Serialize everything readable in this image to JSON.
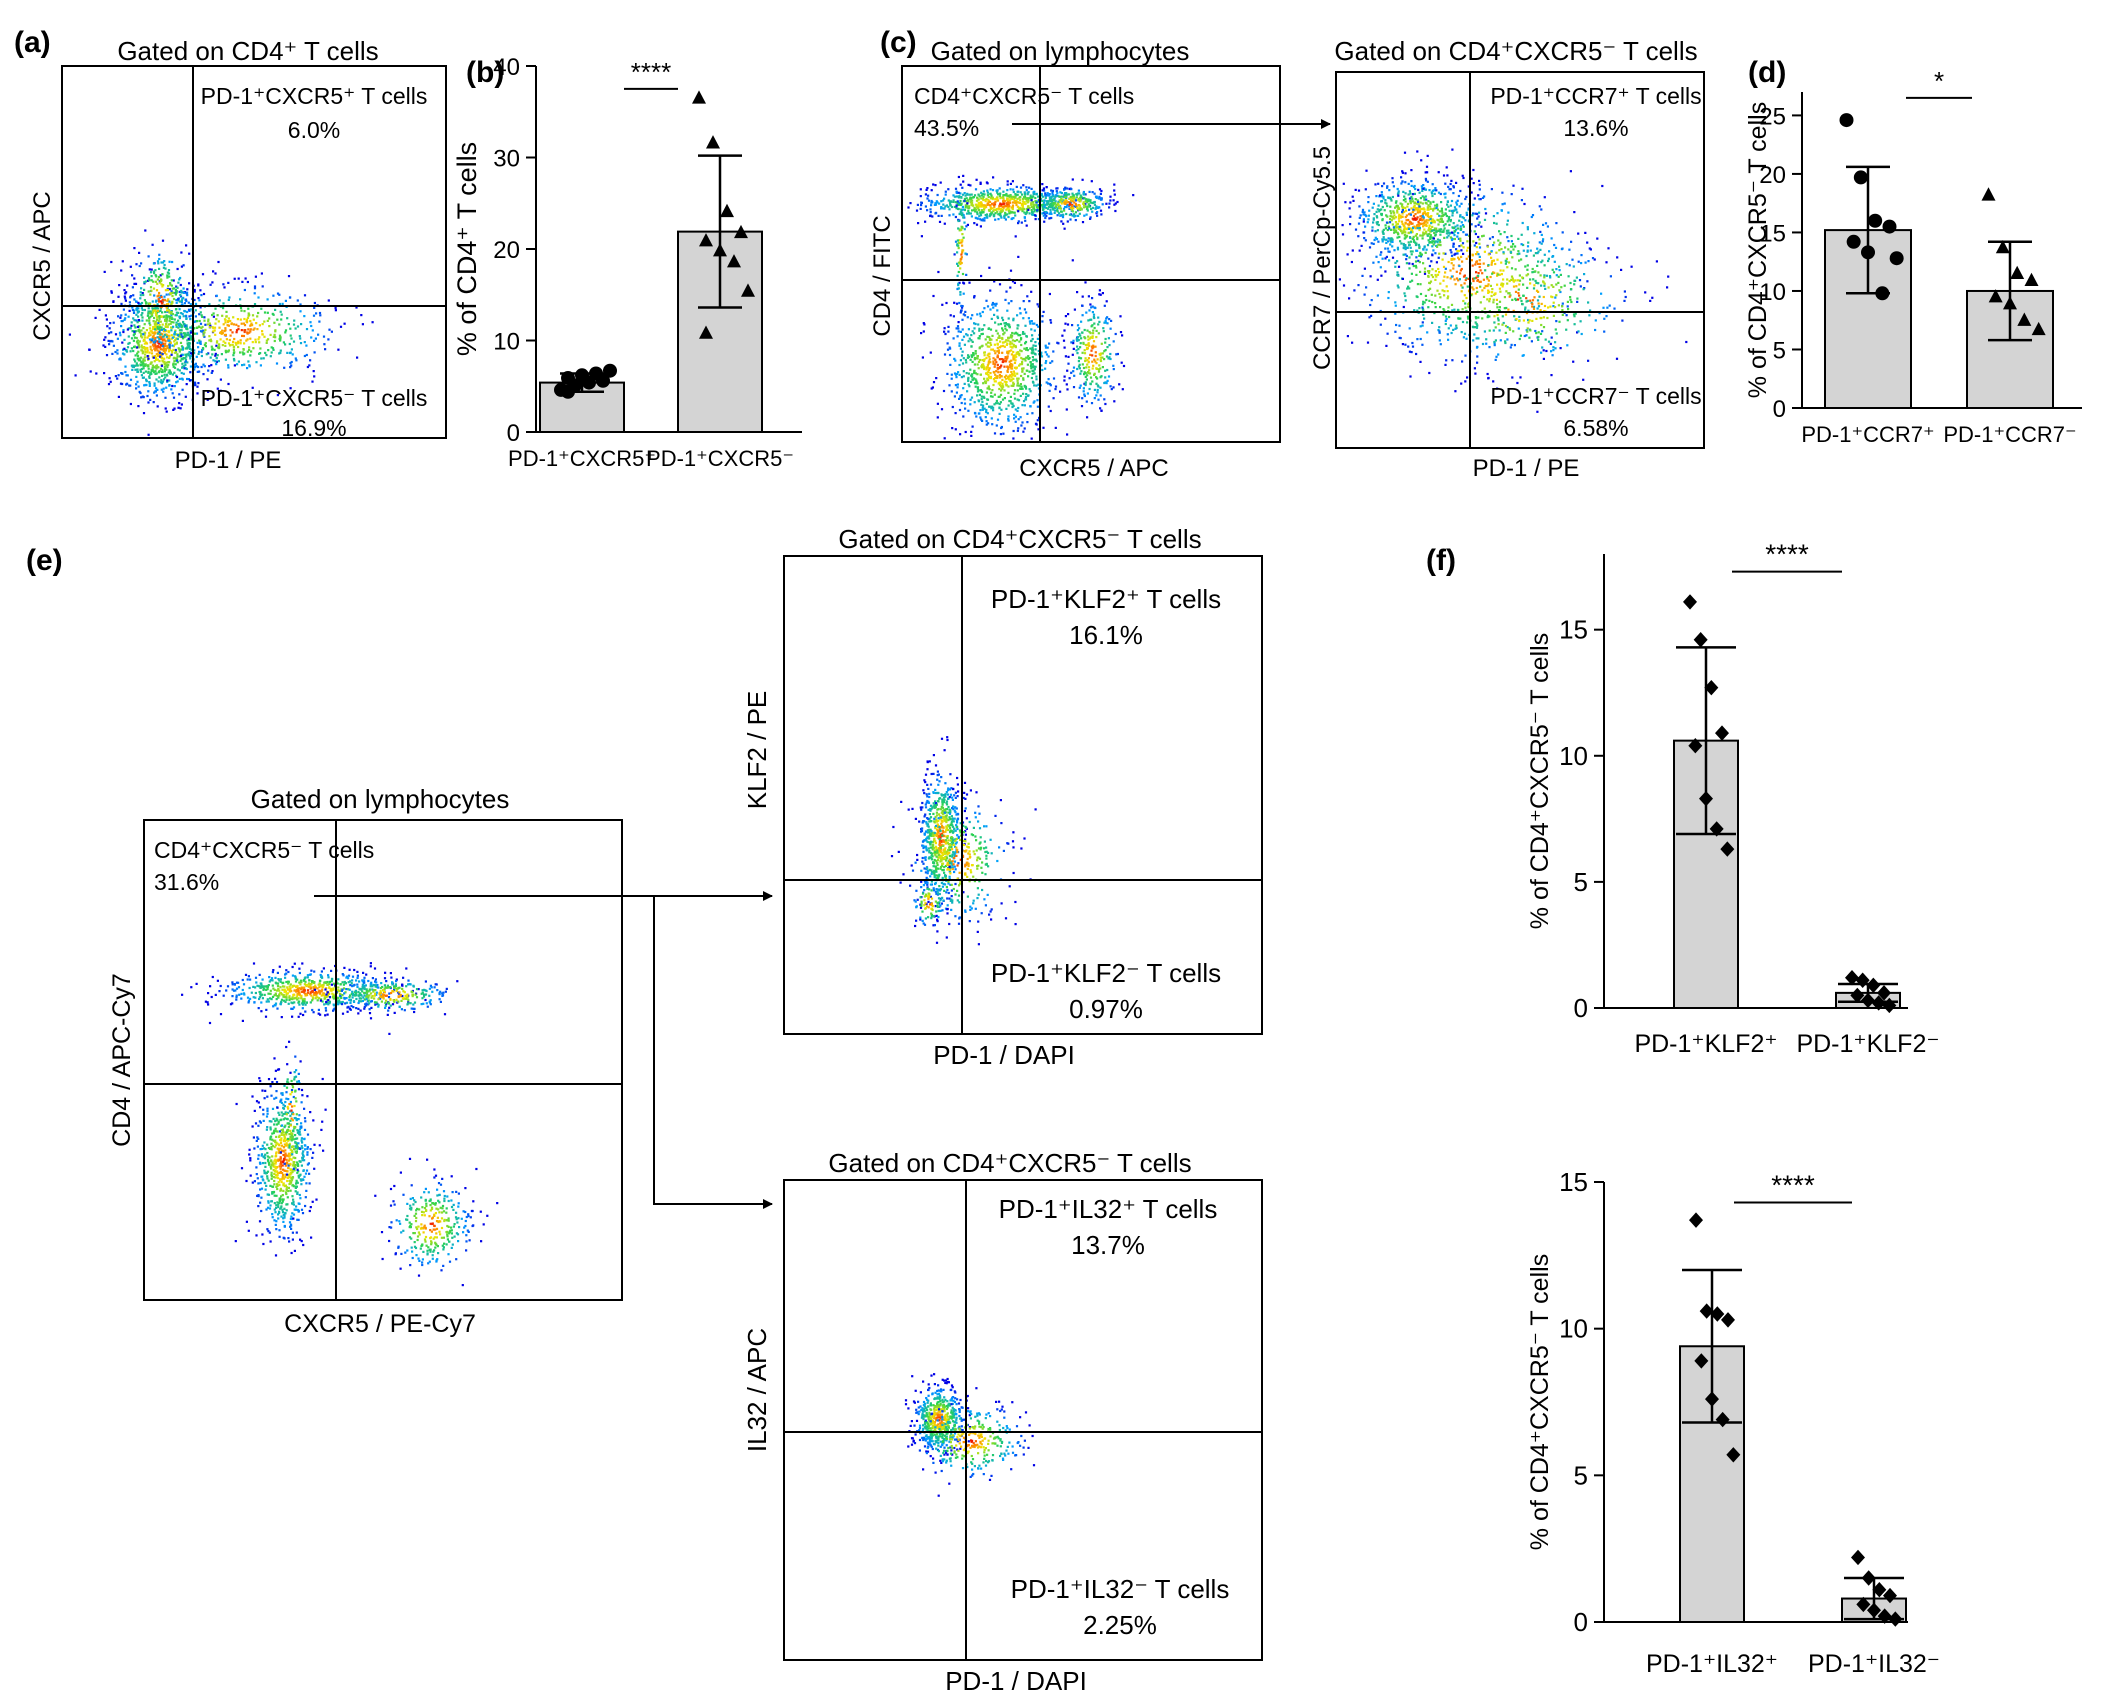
{
  "panel_labels": [
    "(a)",
    "(b)",
    "(c)",
    "(d)",
    "(e)",
    "(f)"
  ],
  "flow_plots": [
    {
      "id": "a",
      "gate": "Gated on CD4⁺ T cells",
      "xlabel": "PD-1 / PE",
      "ylabel": "CXCR5 / APC",
      "quadrants": [
        {
          "name": "PD-1⁺CXCR5⁺ T cells",
          "pct": "6.0%"
        },
        {
          "name": "PD-1⁺CXCR5⁻ T cells",
          "pct": "16.9%"
        }
      ]
    },
    {
      "id": "c1",
      "gate": "Gated on lymphocytes",
      "xlabel": "CXCR5 / APC",
      "ylabel": "CD4 / FITC",
      "quadrants": [
        {
          "name": "CD4⁺CXCR5⁻ T cells",
          "pct": "43.5%"
        }
      ]
    },
    {
      "id": "c2",
      "gate": "Gated on CD4⁺CXCR5⁻ T cells",
      "xlabel": "PD-1 / PE",
      "ylabel": "CCR7 / PerCp-Cy5.5",
      "quadrants": [
        {
          "name": "PD-1⁺CCR7⁺ T cells",
          "pct": "13.6%"
        },
        {
          "name": "PD-1⁺CCR7⁻ T cells",
          "pct": "6.58%"
        }
      ]
    },
    {
      "id": "e1",
      "gate": "Gated on lymphocytes",
      "xlabel": "CXCR5 / PE-Cy7",
      "ylabel": "CD4 / APC-Cy7",
      "quadrants": [
        {
          "name": "CD4⁺CXCR5⁻ T cells",
          "pct": "31.6%"
        }
      ]
    },
    {
      "id": "e2",
      "gate": "Gated on CD4⁺CXCR5⁻ T cells",
      "xlabel": "PD-1 / DAPI",
      "ylabel": "KLF2 / PE",
      "quadrants": [
        {
          "name": "PD-1⁺KLF2⁺ T cells",
          "pct": "16.1%"
        },
        {
          "name": "PD-1⁺KLF2⁻ T cells",
          "pct": "0.97%"
        }
      ]
    },
    {
      "id": "e3",
      "gate": "Gated on CD4⁺CXCR5⁻ T cells",
      "xlabel": "PD-1 / DAPI",
      "ylabel": "IL32 / APC",
      "quadrants": [
        {
          "name": "PD-1⁺IL32⁺ T cells",
          "pct": "13.7%"
        },
        {
          "name": "PD-1⁺IL32⁻ T cells",
          "pct": "2.25%"
        }
      ]
    }
  ],
  "chart_data": [
    {
      "id": "b",
      "type": "bar",
      "ylabel": "% of CD4⁺ T cells",
      "ylim": [
        0,
        40
      ],
      "yticks": [
        0,
        10,
        20,
        30,
        40
      ],
      "categories": [
        "PD-1⁺CXCR5⁺",
        "PD-1⁺CXCR5⁻"
      ],
      "values": [
        5.4,
        21.9
      ],
      "errors": [
        1.0,
        8.3
      ],
      "points": [
        [
          4.6,
          5.1,
          5.4,
          5.6,
          5.9,
          6.2,
          6.4,
          6.7,
          4.4
        ],
        [
          36.5,
          31.6,
          24.1,
          21.8,
          20.9,
          19.8,
          18.6,
          15.4,
          10.8
        ]
      ],
      "markers": [
        "circle",
        "triangle"
      ],
      "significance": "****"
    },
    {
      "id": "d",
      "type": "bar",
      "ylabel": "% of CD4⁺CXCR5⁻ T cells",
      "ylim": [
        0,
        27
      ],
      "yticks": [
        0,
        5,
        10,
        15,
        20,
        25
      ],
      "categories": [
        "PD-1⁺CCR7⁺",
        "PD-1⁺CCR7⁻"
      ],
      "values": [
        15.2,
        10.0
      ],
      "errors": [
        5.4,
        4.2
      ],
      "points": [
        [
          24.6,
          19.7,
          16.0,
          15.5,
          14.2,
          13.3,
          9.8,
          12.8
        ],
        [
          18.2,
          13.7,
          11.5,
          10.9,
          9.5,
          8.9,
          7.5,
          6.7
        ]
      ],
      "markers": [
        "circle",
        "triangle"
      ],
      "significance": "*"
    },
    {
      "id": "f1",
      "type": "bar",
      "ylabel": "% of CD4⁺CXCR5⁻ T cells",
      "ylim": [
        0,
        18
      ],
      "yticks": [
        0,
        5,
        10,
        15
      ],
      "categories": [
        "PD-1⁺KLF2⁺",
        "PD-1⁺KLF2⁻"
      ],
      "values": [
        10.6,
        0.6
      ],
      "errors": [
        3.7,
        0.35
      ],
      "points": [
        [
          16.1,
          14.6,
          12.7,
          10.9,
          10.4,
          8.3,
          7.1,
          6.3
        ],
        [
          1.2,
          1.1,
          0.9,
          0.6,
          0.5,
          0.3,
          0.2,
          0.1
        ]
      ],
      "markers": [
        "diamond",
        "diamond"
      ],
      "significance": "****"
    },
    {
      "id": "f2",
      "type": "bar",
      "ylabel": "% of CD4⁺CXCR5⁻ T cells",
      "ylim": [
        0,
        15
      ],
      "yticks": [
        0,
        5,
        10,
        15
      ],
      "categories": [
        "PD-1⁺IL32⁺",
        "PD-1⁺IL32⁻"
      ],
      "values": [
        9.4,
        0.8
      ],
      "errors": [
        2.6,
        0.7
      ],
      "points": [
        [
          13.7,
          10.6,
          10.5,
          10.3,
          8.9,
          7.6,
          6.9,
          5.7
        ],
        [
          2.2,
          1.5,
          1.1,
          0.9,
          0.6,
          0.4,
          0.2,
          0.1
        ]
      ],
      "markers": [
        "diamond",
        "diamond"
      ],
      "significance": "****"
    }
  ]
}
